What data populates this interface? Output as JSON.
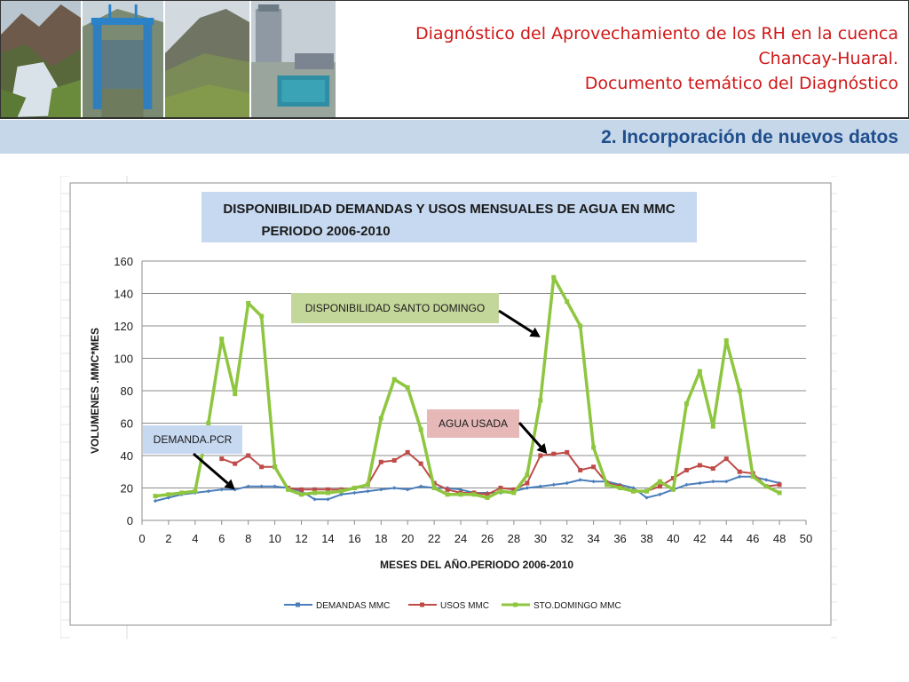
{
  "header": {
    "title_lines": [
      "Diagnóstico del Aprovechamiento de los RH en la cuenca",
      "Chancay-Huaral.",
      "Documento temático del Diagnóstico"
    ]
  },
  "section": {
    "title": "2. Incorporación de nuevos datos"
  },
  "colors": {
    "title": "#d01818",
    "section_text": "#1f4e8c",
    "section_bar": "#c7d7ea",
    "demandas": "#4a7ebb",
    "usos": "#be4b48",
    "sto_domingo": "#8ec63f"
  },
  "chart_data": {
    "type": "line",
    "title": "DISPONIBILIDAD DEMANDAS Y USOS MENSUALES DE AGUA EN MMC PERIODO 2006-2010",
    "title_lines": [
      "DISPONIBILIDAD DEMANDAS Y USOS MENSUALES DE AGUA EN MMC",
      "PERIODO 2006-2010"
    ],
    "xlabel": "MESES  DEL  AÑO.PERIODO  2006-2010",
    "ylabel": "VOLUMENES  .MMC*MES",
    "xlim": [
      0,
      50
    ],
    "ylim": [
      0,
      160
    ],
    "xticks": [
      0,
      2,
      4,
      6,
      8,
      10,
      12,
      14,
      16,
      18,
      20,
      22,
      24,
      26,
      28,
      30,
      32,
      34,
      36,
      38,
      40,
      42,
      44,
      46,
      48,
      50
    ],
    "yticks": [
      0,
      20,
      40,
      60,
      80,
      100,
      120,
      140,
      160
    ],
    "grid": "horizontal",
    "legend_position": "bottom",
    "series": [
      {
        "name": "DEMANDAS MMC",
        "color": "#4a7ebb",
        "x": [
          1,
          2,
          3,
          4,
          5,
          6,
          7,
          8,
          9,
          10,
          11,
          12,
          13,
          14,
          15,
          16,
          17,
          18,
          19,
          20,
          21,
          22,
          23,
          24,
          25,
          26,
          27,
          28,
          29,
          30,
          31,
          32,
          33,
          34,
          35,
          36,
          37,
          38,
          39,
          40,
          41,
          42,
          43,
          44,
          45,
          46,
          47,
          48
        ],
        "values": [
          12,
          14,
          16,
          17,
          18,
          19,
          19,
          21,
          21,
          21,
          20,
          18,
          13,
          13,
          16,
          17,
          18,
          19,
          20,
          19,
          21,
          20,
          20,
          19,
          17,
          17,
          17,
          18,
          20,
          21,
          22,
          23,
          25,
          24,
          24,
          22,
          20,
          14,
          16,
          19,
          22,
          23,
          24,
          24,
          27,
          27,
          25,
          23
        ]
      },
      {
        "name": "USOS MMC",
        "color": "#be4b48",
        "x": [
          6,
          7,
          8,
          9,
          10,
          11,
          12,
          13,
          14,
          15,
          16,
          17,
          18,
          19,
          20,
          21,
          22,
          23,
          24,
          25,
          26,
          27,
          28,
          29,
          30,
          31,
          32,
          33,
          34,
          35,
          36,
          37,
          38,
          39,
          40,
          41,
          42,
          43,
          44,
          45,
          46,
          47,
          48
        ],
        "values": [
          38,
          35,
          40,
          33,
          33,
          20,
          19,
          19,
          19,
          19,
          20,
          22,
          36,
          37,
          42,
          35,
          23,
          19,
          17,
          17,
          16,
          20,
          19,
          23,
          40,
          41,
          42,
          31,
          33,
          23,
          21,
          18,
          18,
          21,
          26,
          31,
          34,
          32,
          38,
          30,
          29,
          21,
          22
        ]
      },
      {
        "name": "STO.DOMINGO MMC",
        "color": "#8ec63f",
        "x": [
          1,
          2,
          3,
          4,
          5,
          6,
          7,
          8,
          9,
          10,
          11,
          12,
          13,
          14,
          15,
          16,
          17,
          18,
          19,
          20,
          21,
          22,
          23,
          24,
          25,
          26,
          27,
          28,
          29,
          30,
          31,
          32,
          33,
          34,
          35,
          36,
          37,
          38,
          39,
          40,
          41,
          42,
          43,
          44,
          45,
          46,
          47,
          48
        ],
        "values": [
          15,
          16,
          17,
          18,
          60,
          112,
          78,
          134,
          126,
          33,
          19,
          16,
          17,
          17,
          18,
          20,
          22,
          63,
          87,
          82,
          56,
          20,
          16,
          16,
          16,
          14,
          18,
          17,
          28,
          74,
          150,
          135,
          120,
          45,
          22,
          20,
          18,
          18,
          24,
          19,
          72,
          92,
          58,
          111,
          80,
          27,
          21,
          17
        ]
      }
    ],
    "annotations": [
      {
        "text": "DISPONIBILIDAD SANTO DOMINGO",
        "target_x": 30,
        "target_y": 113
      },
      {
        "text": "AGUA USADA",
        "target_x": 30.5,
        "target_y": 41
      },
      {
        "text": "DEMANDA.PCR",
        "target_x": 7,
        "target_y": 19
      }
    ]
  }
}
